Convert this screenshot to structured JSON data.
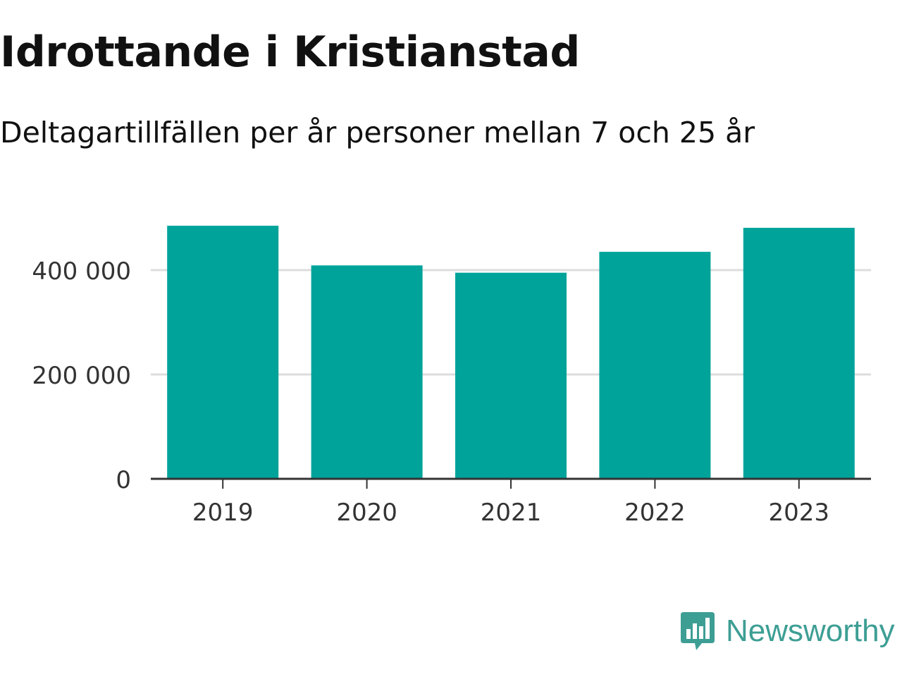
{
  "title": "Idrottande i Kristianstad",
  "subtitle": "Deltagartillfällen per år personer mellan 7 och 25 år",
  "brand": {
    "name": "Newsworthy",
    "icon": "bar-chart-speech-bubble-icon",
    "color": "#3d9e94"
  },
  "chart_data": {
    "type": "bar",
    "categories": [
      "2019",
      "2020",
      "2021",
      "2022",
      "2023"
    ],
    "values": [
      485000,
      409000,
      395000,
      435000,
      481000
    ],
    "ylim": [
      0,
      500000
    ],
    "yticks": [
      0,
      200000,
      400000
    ],
    "ytick_labels": [
      "0",
      "200 000",
      "400 000"
    ],
    "grid": true,
    "bar_color": "#00a39a",
    "grid_color": "#dddddd",
    "axis_color": "#333333"
  }
}
